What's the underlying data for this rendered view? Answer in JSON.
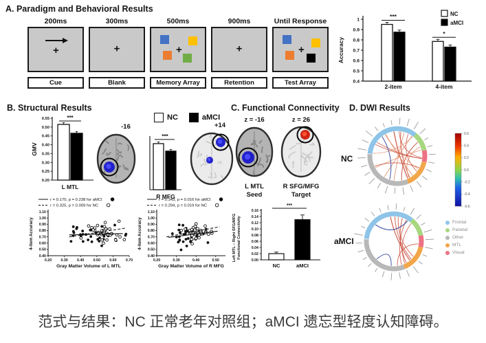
{
  "caption": "范式与结果：NC 正常老年对照组；aMCI 遗忘型轻度认知障碍。",
  "panelA": {
    "title": "A. Paradigm and Behavioral Results",
    "fixation": "+",
    "stages": [
      {
        "duration": "200ms",
        "label": "Cue"
      },
      {
        "duration": "300ms",
        "label": "Blank"
      },
      {
        "duration": "500ms",
        "label": "Memory Array"
      },
      {
        "duration": "900ms",
        "label": "Retention"
      },
      {
        "duration": "Until Response",
        "label": "Test Array"
      }
    ],
    "square_colors": {
      "blue": "#4472c4",
      "orange": "#ed7d31",
      "yellow": "#ffc000",
      "green": "#70ad47",
      "black": "#000000"
    }
  },
  "panelB": {
    "title": "B. Structural Results",
    "legend_nc": "NC",
    "legend_amci": "aMCI",
    "slice_left": "-16",
    "slice_right": "+14"
  },
  "panelC": {
    "title": "C. Functional Connectivity",
    "z_left": "z = -16",
    "z_right": "z = 26",
    "seed_line1": "L MTL",
    "seed_line2": "Seed",
    "target_line1": "R SFG/MFG",
    "target_line2": "Target"
  },
  "panelD": {
    "title": "D. DWI Results",
    "group_top": "NC",
    "group_bottom": "aMCI",
    "edge_positive": "#c84a38",
    "edge_negative": "#3a4fa0",
    "legend": [
      {
        "label": "Frontal",
        "color": "#8ec4e8"
      },
      {
        "label": "Parietal",
        "color": "#a8d77f"
      },
      {
        "label": "Other",
        "color": "#b8b8b8"
      },
      {
        "label": "MTL",
        "color": "#f2a64a"
      },
      {
        "label": "Visual",
        "color": "#ee7285"
      }
    ]
  },
  "chart_data": [
    {
      "id": "behavioral_accuracy",
      "type": "bar",
      "ylabel": "Accuracy",
      "ylim": [
        0.4,
        1.0
      ],
      "yticks": [
        0.4,
        0.5,
        0.6,
        0.7,
        0.8,
        0.9,
        1
      ],
      "categories": [
        "2-item",
        "4-item"
      ],
      "series": [
        {
          "name": "NC",
          "fill": "#ffffff",
          "values": [
            0.95,
            0.785
          ]
        },
        {
          "name": "aMCI",
          "fill": "#000000",
          "values": [
            0.875,
            0.73
          ]
        }
      ],
      "significance": [
        "***",
        "*"
      ],
      "legend_position": "top-right"
    },
    {
      "id": "gmv_l_mtl",
      "type": "bar",
      "ylabel": "GMV",
      "ylim": [
        0.2,
        0.55
      ],
      "yticks": [
        0.55,
        0.5,
        0.45,
        0.4,
        0.35,
        0.3,
        0.25,
        0.2
      ],
      "category": "L MTL",
      "bars": [
        {
          "label": "NC",
          "fill": "#ffffff",
          "value": 0.515
        },
        {
          "label": "aMCI",
          "fill": "#000000",
          "value": 0.465
        }
      ],
      "significance": "***"
    },
    {
      "id": "gmv_r_mfg",
      "type": "bar",
      "ylabel": "",
      "category": "R MFG",
      "note": "axis unlabeled in figure; heights relative",
      "bars": [
        {
          "label": "NC",
          "fill": "#ffffff",
          "relative_height": 0.86
        },
        {
          "label": "aMCI",
          "fill": "#000000",
          "relative_height": 0.72
        }
      ],
      "significance": "***"
    },
    {
      "id": "functional_connectivity",
      "type": "bar",
      "ylabel_line1": "Left MTL – Right SFG/MFG",
      "ylabel_line2": "Functional Connectivity",
      "ylim": [
        0,
        0.16
      ],
      "yticks": [
        0.16,
        0.14,
        0.12,
        0.1,
        0.08,
        0.06,
        0.04,
        0.02,
        0.0
      ],
      "bars": [
        {
          "label": "NC",
          "fill": "#ffffff",
          "value": 0.02,
          "error": 0.005
        },
        {
          "label": "aMCI",
          "fill": "#000000",
          "value": 0.13,
          "error": 0.015
        }
      ],
      "significance": "***"
    },
    {
      "id": "scatter_l_mtl",
      "type": "scatter",
      "xlabel": "Gray Matter Volume of L MTL",
      "ylabel": "4-item Accuracy",
      "xlim": [
        0.2,
        0.7
      ],
      "ylim": [
        0.4,
        1.1
      ],
      "xticks": [
        0.2,
        0.3,
        0.4,
        0.5,
        0.6,
        0.7
      ],
      "yticks": [
        0.4,
        0.5,
        0.6,
        0.7,
        0.8,
        0.9,
        1.0,
        1.1
      ],
      "fits": [
        {
          "group": "aMCI",
          "marker": "filled",
          "line": "solid",
          "r": "0.170",
          "p": "0.238",
          "label": "r = 0.170, p = 0.238 for aMCI"
        },
        {
          "group": "NC",
          "marker": "open",
          "line": "dashed",
          "r": "0.325",
          "p": "0.009",
          "label": "r = 0.325, p = 0.009 for NC"
        }
      ]
    },
    {
      "id": "scatter_r_mfg",
      "type": "scatter",
      "xlabel": "Gray Matter Volume of R MFG",
      "ylabel": "4-item Accuracy",
      "xlim": [
        0.2,
        0.55
      ],
      "ylim": [
        0.4,
        1.1
      ],
      "xticks": [
        0.2,
        0.3,
        0.4,
        0.5
      ],
      "yticks": [
        0.4,
        0.5,
        0.6,
        0.7,
        0.8,
        0.9,
        1.0,
        1.1
      ],
      "fits": [
        {
          "group": "aMCI",
          "marker": "filled",
          "line": "solid",
          "r": "0.343",
          "p": "0.016",
          "label": "r = 0.343, p = 0.016 for aMCI"
        },
        {
          "group": "NC",
          "marker": "open",
          "line": "dashed",
          "r": "0.294",
          "p": "0.019",
          "label": "r = 0.294, p = 0.019 for NC"
        }
      ]
    },
    {
      "id": "dwi_colorbar",
      "type": "colorbar",
      "ticks": [
        0.6,
        0.4,
        0.2,
        0.0,
        -0.2,
        -0.4,
        -0.6
      ]
    }
  ]
}
